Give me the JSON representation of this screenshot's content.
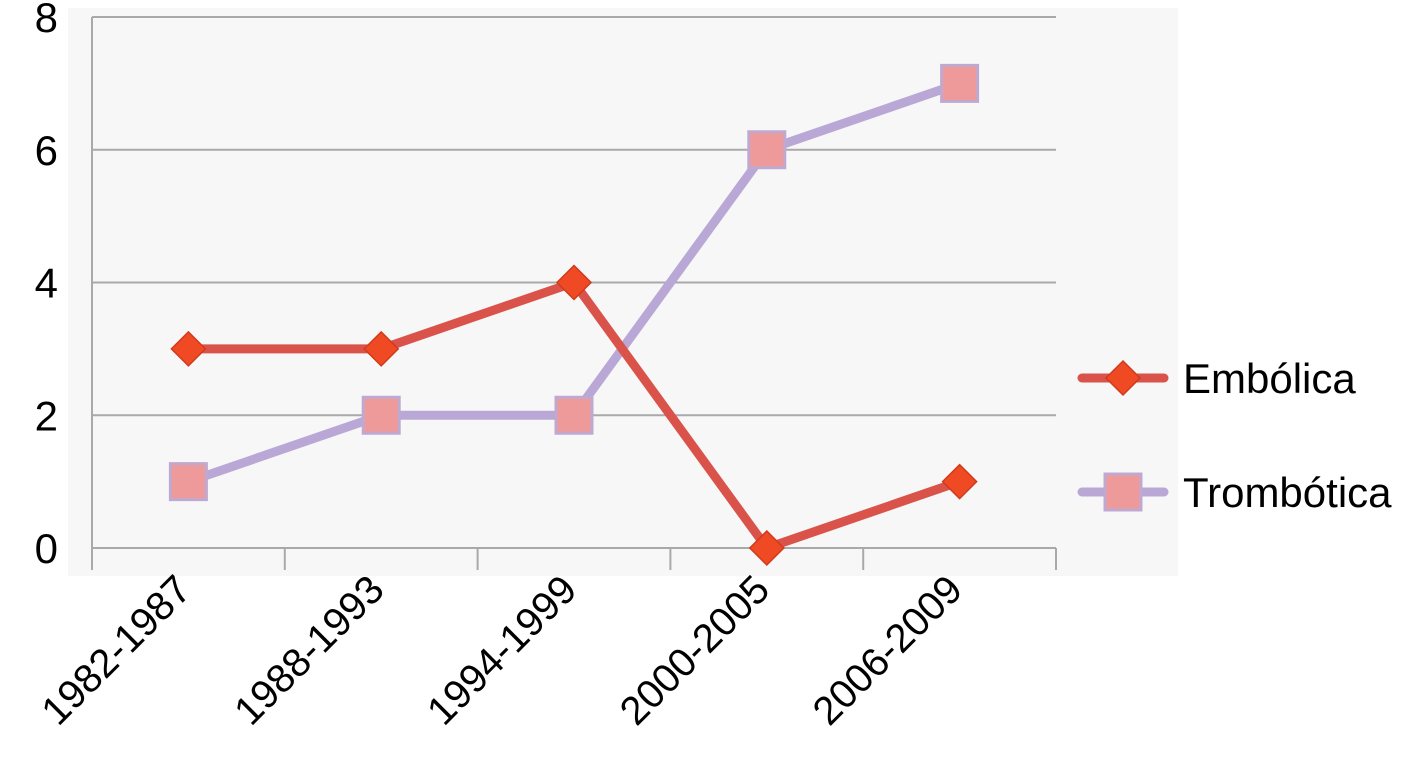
{
  "chart_data": {
    "type": "line",
    "title": "",
    "xlabel": "",
    "ylabel": "",
    "categories": [
      "1982-1987",
      "1988-1993",
      "1994-1999",
      "2000-2005",
      "2006-2009"
    ],
    "ylim": [
      0,
      8
    ],
    "yticks": [
      "0",
      "2",
      "4",
      "6",
      "8"
    ],
    "grid": true,
    "legend_position": "right",
    "series": [
      {
        "name": "Embólica",
        "values": [
          3,
          3,
          4,
          0,
          1
        ],
        "marker": "diamond",
        "line_color": "#d9534a",
        "marker_color": "#ef4a23"
      },
      {
        "name": "Trombótica",
        "values": [
          1,
          2,
          2,
          6,
          7
        ],
        "marker": "square",
        "line_color": "#b9a8d6",
        "marker_color": "#ee9a9a"
      }
    ]
  }
}
